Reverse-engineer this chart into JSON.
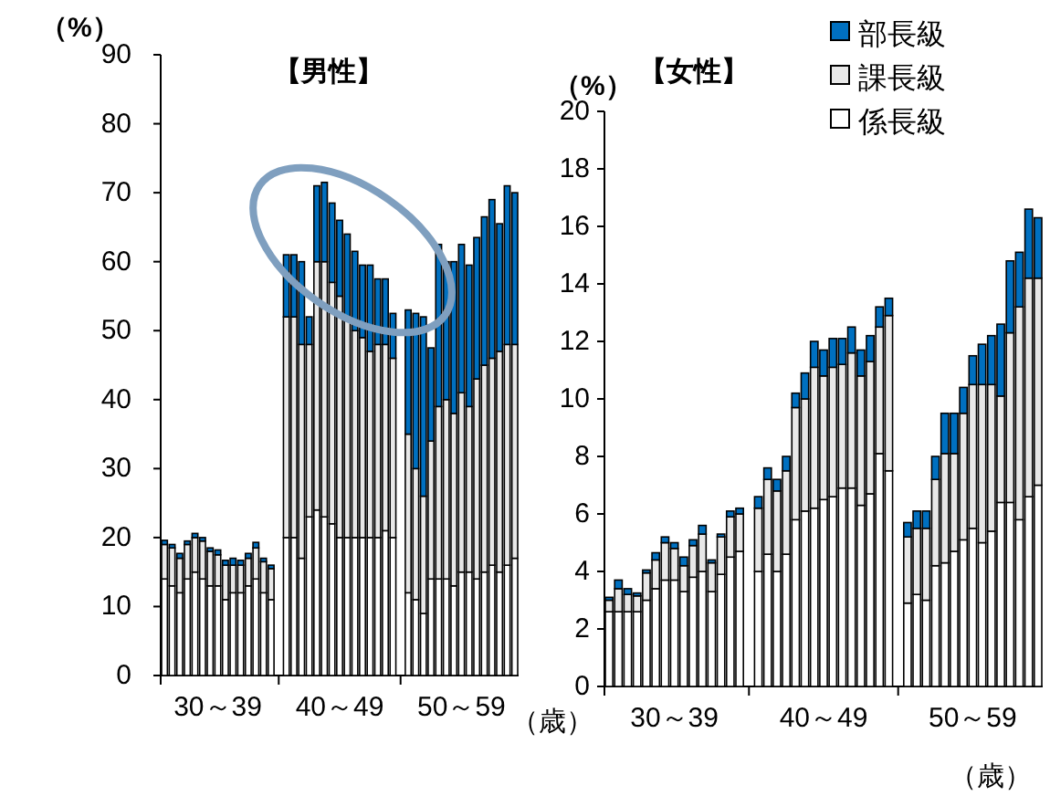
{
  "chart_data": [
    {
      "type": "bar",
      "stacked": true,
      "title": "【男性】",
      "ylabel": "（%）",
      "xlabel": "（歳）",
      "categories": [
        null,
        null,
        null,
        null,
        null,
        null,
        null,
        "30～39",
        null,
        null,
        null,
        null,
        null,
        null,
        null,
        null,
        null,
        null,
        null,
        null,
        null,
        null,
        null,
        "40～49",
        null,
        null,
        null,
        null,
        null,
        null,
        null,
        null,
        null,
        null,
        null,
        null,
        null,
        null,
        null,
        "50～59",
        null,
        null,
        null,
        null,
        null,
        null,
        null
      ],
      "ylim": [
        0,
        90
      ],
      "yticks": [
        0,
        10,
        20,
        30,
        40,
        50,
        60,
        70,
        80,
        90
      ],
      "series": [
        {
          "color": "#ffffff",
          "values": [
            14,
            13,
            12,
            14,
            15,
            14,
            13,
            13,
            11,
            12,
            12,
            13,
            14,
            12,
            11,
            null,
            20,
            20,
            17,
            23,
            24,
            23,
            22,
            20,
            20,
            20,
            20,
            20,
            20,
            21,
            20,
            null,
            12,
            11,
            9,
            14,
            14,
            14,
            13,
            15,
            15,
            14,
            15,
            16,
            15,
            16,
            17
          ]
        },
        {
          "color": "#e8e8e8",
          "values": [
            5,
            5.5,
            5,
            5,
            5,
            5.5,
            5,
            4.5,
            5,
            4,
            4,
            4,
            4.5,
            4.5,
            4.5,
            null,
            32,
            32,
            31,
            25,
            36,
            37,
            35,
            35,
            32,
            30,
            29,
            27,
            28,
            27,
            26,
            null,
            23,
            19,
            17,
            20,
            25,
            26,
            25,
            26,
            24,
            29,
            30,
            30,
            32,
            32,
            31
          ]
        },
        {
          "color": "#0070c0",
          "values": [
            0.6,
            0.5,
            0.7,
            0.5,
            0.6,
            0.5,
            0.5,
            0.7,
            0.7,
            1,
            0.7,
            0.7,
            0.8,
            0.5,
            0.5,
            null,
            9,
            9,
            12,
            4,
            11,
            11.5,
            11.5,
            11,
            12,
            11.5,
            10.5,
            12.5,
            9.5,
            9.5,
            6.5,
            null,
            18,
            22.5,
            26,
            13.5,
            23.5,
            20,
            22,
            21.5,
            20.5,
            20.5,
            21.5,
            23,
            18.5,
            23,
            22
          ]
        }
      ]
    },
    {
      "type": "bar",
      "stacked": true,
      "title": "【女性】",
      "ylabel": "（%）",
      "xlabel": "（歳）",
      "legend": "top right",
      "categories": [
        null,
        null,
        null,
        null,
        null,
        null,
        null,
        "30～39",
        null,
        null,
        null,
        null,
        null,
        null,
        null,
        null,
        null,
        null,
        null,
        null,
        null,
        null,
        null,
        "40～49",
        null,
        null,
        null,
        null,
        null,
        null,
        null,
        null,
        null,
        null,
        null,
        null,
        null,
        null,
        null,
        "50～59",
        null,
        null,
        null,
        null,
        null,
        null,
        null
      ],
      "ylim": [
        0,
        20
      ],
      "yticks": [
        0,
        2,
        4,
        6,
        8,
        10,
        12,
        14,
        16,
        18,
        20
      ],
      "series": [
        {
          "name": "係長級",
          "color": "#ffffff",
          "values": [
            2.6,
            2.6,
            2.6,
            2.6,
            3.0,
            3.4,
            3.7,
            3.7,
            3.3,
            3.8,
            4.0,
            3.3,
            3.9,
            4.5,
            4.7,
            null,
            4.0,
            4.6,
            4.0,
            4.6,
            5.8,
            6.1,
            6.2,
            6.5,
            6.6,
            6.9,
            6.9,
            6.3,
            6.7,
            8.1,
            7.5,
            null,
            2.9,
            3.2,
            3.0,
            4.2,
            4.3,
            4.7,
            5.1,
            5.5,
            5.0,
            5.4,
            6.4,
            6.4,
            5.8,
            6.6,
            7.0
          ]
        },
        {
          "name": "課長級",
          "color": "#e8e8e8",
          "values": [
            0.4,
            0.8,
            0.6,
            0.55,
            0.95,
            1.0,
            1.3,
            1.1,
            0.9,
            1.1,
            1.3,
            1.0,
            1.3,
            1.4,
            1.3,
            null,
            2.2,
            2.6,
            2.8,
            2.9,
            3.9,
            3.9,
            4.9,
            4.3,
            4.5,
            4.3,
            4.7,
            4.5,
            4.6,
            4.4,
            5.4,
            null,
            2.3,
            2.3,
            2.5,
            3.0,
            3.8,
            3.4,
            4.4,
            5.0,
            5.5,
            5.1,
            3.7,
            5.9,
            7.4,
            7.6,
            7.2
          ]
        },
        {
          "name": "部長級",
          "color": "#0070c0",
          "values": [
            0.1,
            0.3,
            0.2,
            0.1,
            0.1,
            0.25,
            0.2,
            0.2,
            0.3,
            0.2,
            0.3,
            0.1,
            0.1,
            0.2,
            0.2,
            null,
            0.4,
            0.4,
            0.4,
            0.5,
            0.5,
            0.9,
            0.9,
            0.9,
            1.0,
            0.9,
            0.9,
            0.9,
            0.9,
            0.7,
            0.6,
            null,
            0.5,
            0.6,
            0.6,
            0.8,
            1.4,
            1.4,
            0.9,
            1.0,
            1.4,
            1.7,
            2.5,
            2.5,
            1.9,
            2.4,
            2.1
          ]
        }
      ]
    }
  ]
}
